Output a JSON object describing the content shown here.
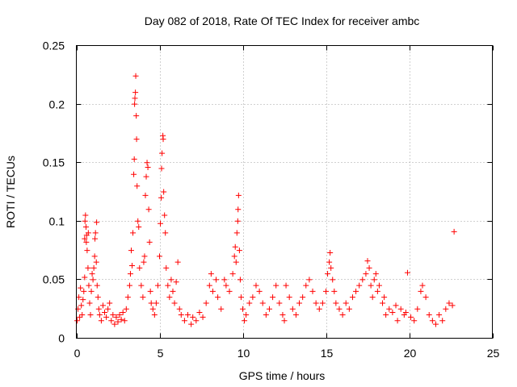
{
  "chart_data": {
    "type": "scatter",
    "title": "Day 082 of 2018, Rate Of TEC Index for receiver ambc",
    "xlabel": "GPS time / hours",
    "ylabel": "ROTI / TECUs",
    "xlim": [
      0,
      25
    ],
    "ylim": [
      0,
      0.25
    ],
    "x_ticks": [
      "0",
      "5",
      "10",
      "15",
      "20",
      "25"
    ],
    "y_ticks": [
      "0",
      "0.05",
      "0.1",
      "0.15",
      "0.2",
      "0.25"
    ],
    "x_tick_values": [
      0,
      5,
      10,
      15,
      20,
      25
    ],
    "y_tick_values": [
      0,
      0.05,
      0.1,
      0.15,
      0.2,
      0.25
    ],
    "grid": true,
    "marker": "plus",
    "color": "#ff0000",
    "points": [
      [
        0.05,
        0.015
      ],
      [
        0.1,
        0.025
      ],
      [
        0.15,
        0.035
      ],
      [
        0.2,
        0.018
      ],
      [
        0.25,
        0.043
      ],
      [
        0.3,
        0.028
      ],
      [
        0.35,
        0.02
      ],
      [
        0.4,
        0.033
      ],
      [
        0.45,
        0.04
      ],
      [
        0.5,
        0.052
      ],
      [
        0.5,
        0.085
      ],
      [
        0.52,
        0.1
      ],
      [
        0.55,
        0.105
      ],
      [
        0.58,
        0.095
      ],
      [
        0.6,
        0.082
      ],
      [
        0.62,
        0.088
      ],
      [
        0.65,
        0.075
      ],
      [
        0.7,
        0.06
      ],
      [
        0.72,
        0.09
      ],
      [
        0.75,
        0.045
      ],
      [
        0.8,
        0.03
      ],
      [
        0.85,
        0.02
      ],
      [
        0.9,
        0.04
      ],
      [
        0.95,
        0.055
      ],
      [
        1.0,
        0.05
      ],
      [
        1.05,
        0.06
      ],
      [
        1.1,
        0.07
      ],
      [
        1.12,
        0.085
      ],
      [
        1.15,
        0.09
      ],
      [
        1.2,
        0.065
      ],
      [
        1.22,
        0.099
      ],
      [
        1.25,
        0.045
      ],
      [
        1.3,
        0.035
      ],
      [
        1.35,
        0.025
      ],
      [
        1.4,
        0.02
      ],
      [
        1.5,
        0.015
      ],
      [
        1.6,
        0.028
      ],
      [
        1.7,
        0.022
      ],
      [
        1.8,
        0.018
      ],
      [
        1.9,
        0.025
      ],
      [
        2.0,
        0.03
      ],
      [
        2.1,
        0.015
      ],
      [
        2.2,
        0.02
      ],
      [
        2.3,
        0.012
      ],
      [
        2.4,
        0.018
      ],
      [
        2.5,
        0.014
      ],
      [
        2.6,
        0.02
      ],
      [
        2.7,
        0.016
      ],
      [
        2.8,
        0.022
      ],
      [
        2.9,
        0.015
      ],
      [
        3.0,
        0.025
      ],
      [
        3.1,
        0.035
      ],
      [
        3.2,
        0.045
      ],
      [
        3.25,
        0.055
      ],
      [
        3.3,
        0.075
      ],
      [
        3.35,
        0.062
      ],
      [
        3.4,
        0.09
      ],
      [
        3.45,
        0.14
      ],
      [
        3.48,
        0.153
      ],
      [
        3.5,
        0.2
      ],
      [
        3.52,
        0.205
      ],
      [
        3.55,
        0.21
      ],
      [
        3.57,
        0.224
      ],
      [
        3.6,
        0.19
      ],
      [
        3.62,
        0.17
      ],
      [
        3.65,
        0.13
      ],
      [
        3.7,
        0.1
      ],
      [
        3.75,
        0.095
      ],
      [
        3.8,
        0.06
      ],
      [
        3.9,
        0.045
      ],
      [
        4.0,
        0.035
      ],
      [
        4.05,
        0.065
      ],
      [
        4.1,
        0.07
      ],
      [
        4.15,
        0.122
      ],
      [
        4.2,
        0.138
      ],
      [
        4.25,
        0.15
      ],
      [
        4.3,
        0.146
      ],
      [
        4.35,
        0.11
      ],
      [
        4.4,
        0.082
      ],
      [
        4.45,
        0.04
      ],
      [
        4.5,
        0.03
      ],
      [
        4.6,
        0.025
      ],
      [
        4.7,
        0.02
      ],
      [
        4.8,
        0.03
      ],
      [
        4.9,
        0.045
      ],
      [
        5.0,
        0.07
      ],
      [
        5.05,
        0.098
      ],
      [
        5.1,
        0.12
      ],
      [
        5.12,
        0.145
      ],
      [
        5.15,
        0.158
      ],
      [
        5.2,
        0.173
      ],
      [
        5.22,
        0.17
      ],
      [
        5.25,
        0.125
      ],
      [
        5.3,
        0.105
      ],
      [
        5.35,
        0.09
      ],
      [
        5.4,
        0.06
      ],
      [
        5.5,
        0.045
      ],
      [
        5.6,
        0.035
      ],
      [
        5.7,
        0.05
      ],
      [
        5.8,
        0.04
      ],
      [
        5.9,
        0.03
      ],
      [
        6.0,
        0.048
      ],
      [
        6.1,
        0.065
      ],
      [
        6.2,
        0.025
      ],
      [
        6.3,
        0.02
      ],
      [
        6.5,
        0.015
      ],
      [
        6.7,
        0.02
      ],
      [
        6.9,
        0.012
      ],
      [
        7.0,
        0.018
      ],
      [
        7.2,
        0.015
      ],
      [
        7.4,
        0.022
      ],
      [
        7.6,
        0.018
      ],
      [
        7.8,
        0.03
      ],
      [
        8.0,
        0.045
      ],
      [
        8.1,
        0.055
      ],
      [
        8.2,
        0.04
      ],
      [
        8.4,
        0.05
      ],
      [
        8.5,
        0.035
      ],
      [
        8.7,
        0.025
      ],
      [
        8.9,
        0.05
      ],
      [
        9.0,
        0.045
      ],
      [
        9.2,
        0.04
      ],
      [
        9.4,
        0.055
      ],
      [
        9.5,
        0.07
      ],
      [
        9.55,
        0.078
      ],
      [
        9.6,
        0.065
      ],
      [
        9.65,
        0.09
      ],
      [
        9.7,
        0.1
      ],
      [
        9.72,
        0.11
      ],
      [
        9.75,
        0.122
      ],
      [
        9.8,
        0.075
      ],
      [
        9.85,
        0.05
      ],
      [
        9.9,
        0.035
      ],
      [
        10.0,
        0.025
      ],
      [
        10.1,
        0.015
      ],
      [
        10.2,
        0.02
      ],
      [
        10.4,
        0.03
      ],
      [
        10.6,
        0.035
      ],
      [
        10.8,
        0.045
      ],
      [
        11.0,
        0.04
      ],
      [
        11.2,
        0.03
      ],
      [
        11.4,
        0.02
      ],
      [
        11.6,
        0.025
      ],
      [
        11.8,
        0.035
      ],
      [
        12.0,
        0.045
      ],
      [
        12.2,
        0.03
      ],
      [
        12.4,
        0.02
      ],
      [
        12.5,
        0.015
      ],
      [
        12.6,
        0.045
      ],
      [
        12.8,
        0.035
      ],
      [
        13.0,
        0.025
      ],
      [
        13.2,
        0.02
      ],
      [
        13.4,
        0.03
      ],
      [
        13.6,
        0.035
      ],
      [
        13.8,
        0.045
      ],
      [
        14.0,
        0.05
      ],
      [
        14.2,
        0.04
      ],
      [
        14.4,
        0.03
      ],
      [
        14.6,
        0.025
      ],
      [
        14.8,
        0.03
      ],
      [
        15.0,
        0.04
      ],
      [
        15.1,
        0.055
      ],
      [
        15.2,
        0.065
      ],
      [
        15.25,
        0.073
      ],
      [
        15.3,
        0.06
      ],
      [
        15.4,
        0.05
      ],
      [
        15.5,
        0.04
      ],
      [
        15.6,
        0.03
      ],
      [
        15.8,
        0.025
      ],
      [
        16.0,
        0.02
      ],
      [
        16.2,
        0.03
      ],
      [
        16.4,
        0.025
      ],
      [
        16.6,
        0.035
      ],
      [
        16.8,
        0.04
      ],
      [
        17.0,
        0.045
      ],
      [
        17.2,
        0.05
      ],
      [
        17.4,
        0.055
      ],
      [
        17.5,
        0.066
      ],
      [
        17.6,
        0.06
      ],
      [
        17.7,
        0.045
      ],
      [
        17.8,
        0.035
      ],
      [
        17.9,
        0.05
      ],
      [
        18.0,
        0.055
      ],
      [
        18.1,
        0.04
      ],
      [
        18.2,
        0.045
      ],
      [
        18.4,
        0.03
      ],
      [
        18.5,
        0.035
      ],
      [
        18.6,
        0.02
      ],
      [
        18.8,
        0.025
      ],
      [
        19.0,
        0.022
      ],
      [
        19.2,
        0.028
      ],
      [
        19.3,
        0.015
      ],
      [
        19.5,
        0.025
      ],
      [
        19.7,
        0.02
      ],
      [
        19.8,
        0.022
      ],
      [
        19.9,
        0.056
      ],
      [
        20.1,
        0.018
      ],
      [
        20.3,
        0.015
      ],
      [
        20.5,
        0.025
      ],
      [
        20.7,
        0.04
      ],
      [
        20.8,
        0.045
      ],
      [
        21.0,
        0.035
      ],
      [
        21.2,
        0.02
      ],
      [
        21.4,
        0.015
      ],
      [
        21.6,
        0.012
      ],
      [
        21.8,
        0.02
      ],
      [
        22.0,
        0.015
      ],
      [
        22.2,
        0.025
      ],
      [
        22.4,
        0.03
      ],
      [
        22.6,
        0.028
      ],
      [
        22.7,
        0.091
      ]
    ]
  }
}
